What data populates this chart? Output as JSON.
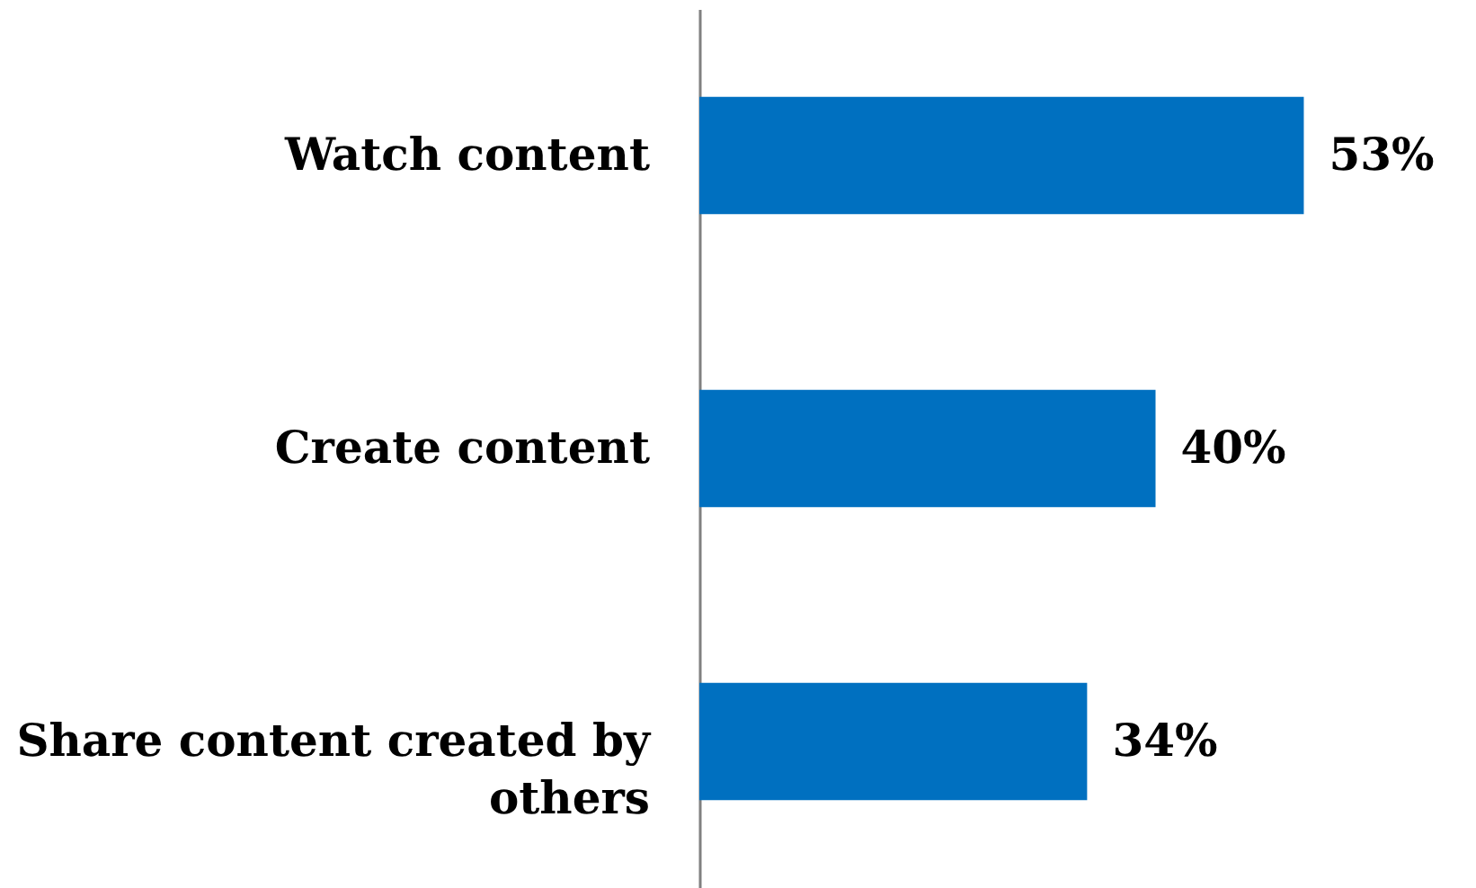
{
  "chart_data": {
    "type": "bar",
    "orientation": "horizontal",
    "categories": [
      "Watch content",
      "Create content",
      "Share content created by others"
    ],
    "values": [
      53,
      40,
      34
    ],
    "value_labels": [
      "53%",
      "40%",
      "34%"
    ],
    "color": "#0070c0",
    "grid": false,
    "tick_labels": "y"
  }
}
